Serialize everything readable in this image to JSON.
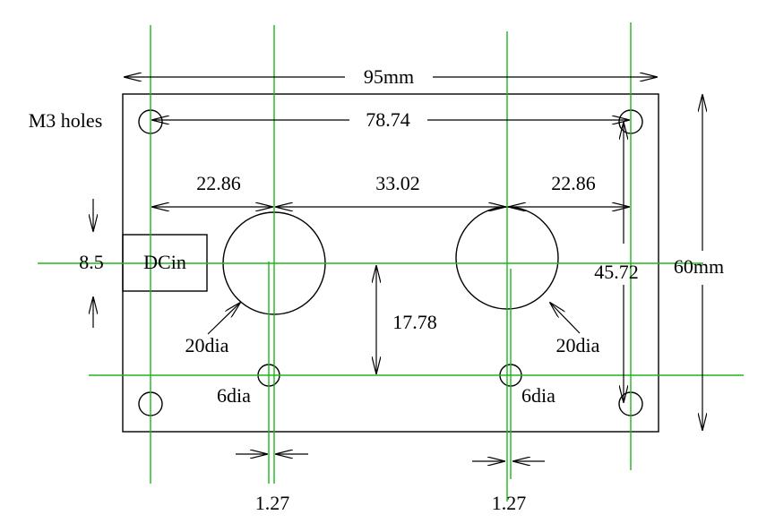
{
  "labels": {
    "width_overall": "95mm",
    "mount_hole_label": "M3 holes",
    "hole_spacing": "78.74",
    "left_spacing": "22.86",
    "center_spacing": "33.02",
    "right_spacing": "22.86",
    "dc_height": "8.5",
    "dc_label": "DCin",
    "vertical_spacing": "45.72",
    "height_overall": "60mm",
    "offset_vertical": "17.78",
    "big_hole_left": "20dia",
    "big_hole_right": "20dia",
    "small_hole_left": "6dia",
    "small_hole_right": "6dia",
    "offset_left": "1.27",
    "offset_right": "1.27"
  },
  "colors": {
    "guide": "#1db51d",
    "line": "#000000"
  }
}
